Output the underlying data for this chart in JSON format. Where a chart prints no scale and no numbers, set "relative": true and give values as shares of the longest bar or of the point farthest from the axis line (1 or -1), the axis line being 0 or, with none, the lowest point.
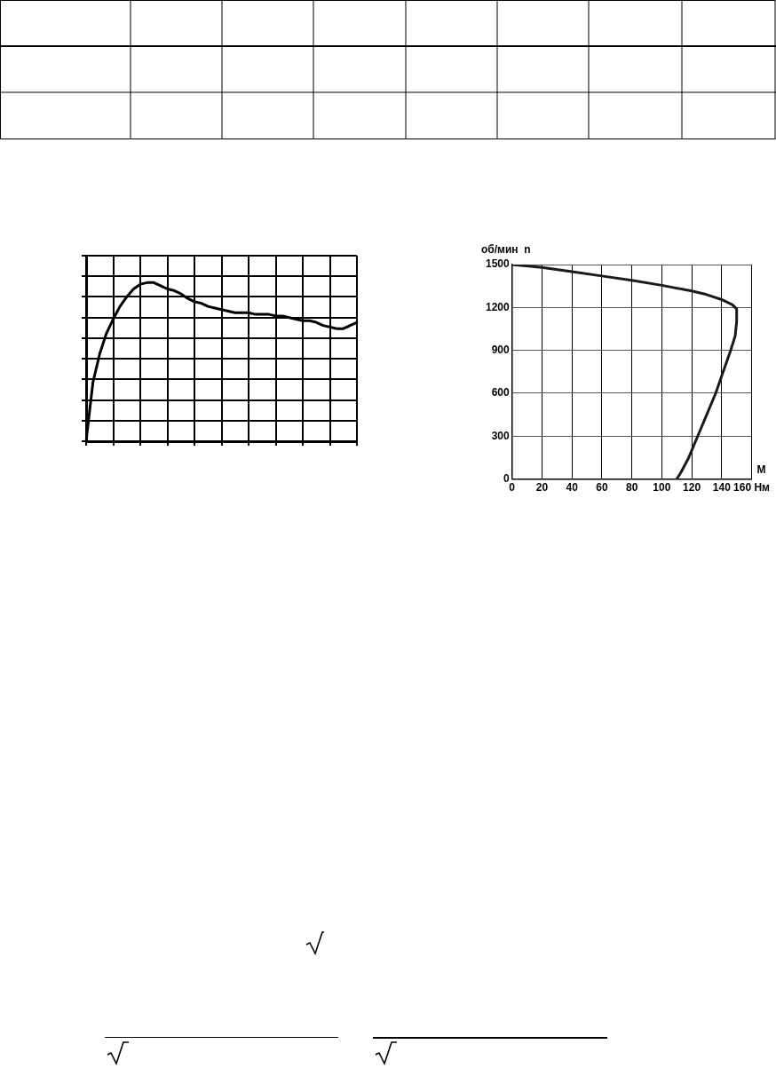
{
  "chart_data": [
    {
      "type": "line",
      "relative": true,
      "grid": true,
      "legend": false,
      "marker": "none",
      "line_style": "solid",
      "categories": [
        null,
        null,
        null,
        null,
        null,
        null,
        null,
        null,
        null,
        null,
        null,
        null,
        null,
        null,
        null,
        null,
        null,
        null,
        null,
        null,
        null,
        null,
        null,
        null,
        null,
        null,
        null,
        null,
        null,
        null,
        null,
        null,
        null,
        null,
        null,
        null,
        null,
        null,
        null,
        null,
        null
      ],
      "series": [
        {
          "color": "#000000",
          "values": [
            0,
            0.37,
            0.55,
            0.68,
            0.77,
            0.85,
            0.91,
            0.96,
            0.99,
            1.0,
            1.0,
            0.98,
            0.96,
            0.95,
            0.93,
            0.9,
            0.88,
            0.87,
            0.85,
            0.84,
            0.83,
            0.82,
            0.81,
            0.81,
            0.81,
            0.8,
            0.8,
            0.8,
            0.79,
            0.79,
            0.78,
            0.77,
            0.76,
            0.76,
            0.75,
            0.73,
            0.72,
            0.71,
            0.71,
            0.73,
            0.75
          ]
        }
      ]
    },
    {
      "type": "line",
      "grid": true,
      "legend": false,
      "marker": "none",
      "line_style": "solid",
      "xlabel": "М",
      "ylabel": "об/мин  n",
      "xlim": [
        0,
        160
      ],
      "xticks": [
        0,
        20,
        40,
        60,
        80,
        100,
        120,
        140,
        {
          "value": 160,
          "label": "160 Нм"
        }
      ],
      "ylim": [
        0,
        1500
      ],
      "yticks": [
        0,
        300,
        600,
        900,
        1200,
        1500
      ],
      "series": [
        {
          "color": "#1a1a1a",
          "x": [
            0,
            20,
            40,
            60,
            80,
            100,
            120,
            130,
            140,
            147,
            150,
            150,
            149,
            146,
            141,
            136,
            130,
            124,
            118,
            113,
            110
          ],
          "values": [
            1500,
            1480,
            1450,
            1420,
            1390,
            1355,
            1315,
            1290,
            1255,
            1220,
            1190,
            1100,
            1000,
            900,
            750,
            600,
            450,
            300,
            150,
            50,
            0
          ]
        }
      ]
    }
  ]
}
